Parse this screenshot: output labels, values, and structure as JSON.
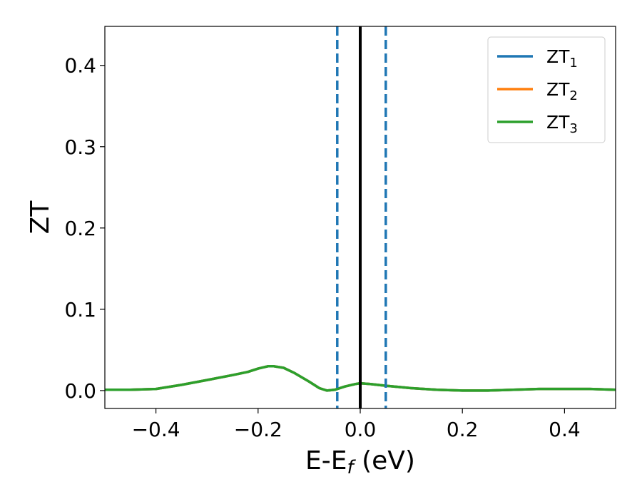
{
  "chart_data": {
    "type": "line",
    "xlabel": {
      "main": "E-E",
      "sub": "f",
      "suffix": " (eV)"
    },
    "ylabel": "ZT",
    "xlim": [
      -0.5,
      0.5
    ],
    "ylim": [
      -0.022,
      0.448
    ],
    "x_ticks": [
      {
        "value": -0.4,
        "label": "−0.4"
      },
      {
        "value": -0.2,
        "label": "−0.2"
      },
      {
        "value": 0.0,
        "label": "0.0"
      },
      {
        "value": 0.2,
        "label": "0.2"
      },
      {
        "value": 0.4,
        "label": "0.4"
      }
    ],
    "y_ticks": [
      {
        "value": 0.0,
        "label": "0.0"
      },
      {
        "value": 0.1,
        "label": "0.1"
      },
      {
        "value": 0.2,
        "label": "0.2"
      },
      {
        "value": 0.3,
        "label": "0.3"
      },
      {
        "value": 0.4,
        "label": "0.4"
      }
    ],
    "grid": false,
    "legend_position": "top-right",
    "series": [
      {
        "name": "ZT",
        "sub": "1",
        "color": "#1f77b4",
        "x": [
          -0.5,
          -0.45,
          -0.4,
          -0.35,
          -0.3,
          -0.25,
          -0.22,
          -0.2,
          -0.18,
          -0.17,
          -0.15,
          -0.13,
          -0.1,
          -0.08,
          -0.065,
          -0.05,
          -0.03,
          -0.01,
          0.0,
          0.02,
          0.05,
          0.1,
          0.15,
          0.2,
          0.25,
          0.3,
          0.35,
          0.4,
          0.45,
          0.5
        ],
        "y": [
          0.001,
          0.001,
          0.002,
          0.007,
          0.013,
          0.019,
          0.023,
          0.027,
          0.03,
          0.03,
          0.028,
          0.022,
          0.011,
          0.003,
          0.0,
          0.001,
          0.005,
          0.008,
          0.009,
          0.008,
          0.006,
          0.003,
          0.001,
          0.0,
          0.0,
          0.001,
          0.002,
          0.002,
          0.002,
          0.001
        ]
      },
      {
        "name": "ZT",
        "sub": "2",
        "color": "#ff7f0e",
        "x": [
          -0.5,
          -0.45,
          -0.4,
          -0.35,
          -0.3,
          -0.25,
          -0.22,
          -0.2,
          -0.18,
          -0.17,
          -0.15,
          -0.13,
          -0.1,
          -0.08,
          -0.065,
          -0.05,
          -0.03,
          -0.01,
          0.0,
          0.02,
          0.05,
          0.1,
          0.15,
          0.2,
          0.25,
          0.3,
          0.35,
          0.4,
          0.45,
          0.5
        ],
        "y": [
          0.001,
          0.001,
          0.002,
          0.007,
          0.013,
          0.019,
          0.023,
          0.027,
          0.03,
          0.03,
          0.028,
          0.022,
          0.011,
          0.003,
          0.0,
          0.001,
          0.005,
          0.008,
          0.009,
          0.008,
          0.006,
          0.003,
          0.001,
          0.0,
          0.0,
          0.001,
          0.002,
          0.002,
          0.002,
          0.001
        ]
      },
      {
        "name": "ZT",
        "sub": "3",
        "color": "#2ca02c",
        "x": [
          -0.5,
          -0.45,
          -0.4,
          -0.35,
          -0.3,
          -0.25,
          -0.22,
          -0.2,
          -0.18,
          -0.17,
          -0.15,
          -0.13,
          -0.1,
          -0.08,
          -0.065,
          -0.05,
          -0.03,
          -0.01,
          0.0,
          0.02,
          0.05,
          0.1,
          0.15,
          0.2,
          0.25,
          0.3,
          0.35,
          0.4,
          0.45,
          0.5
        ],
        "y": [
          0.001,
          0.001,
          0.002,
          0.007,
          0.013,
          0.019,
          0.023,
          0.027,
          0.03,
          0.03,
          0.028,
          0.022,
          0.011,
          0.003,
          0.0,
          0.001,
          0.005,
          0.008,
          0.009,
          0.008,
          0.006,
          0.003,
          0.001,
          0.0,
          0.0,
          0.001,
          0.002,
          0.002,
          0.002,
          0.001
        ]
      }
    ],
    "vertical_lines": [
      {
        "x": -0.045,
        "style": "dashed",
        "color": "#1f77b4"
      },
      {
        "x": 0.0,
        "style": "solid",
        "color": "#000000"
      },
      {
        "x": 0.05,
        "style": "dashed",
        "color": "#1f77b4"
      }
    ]
  }
}
